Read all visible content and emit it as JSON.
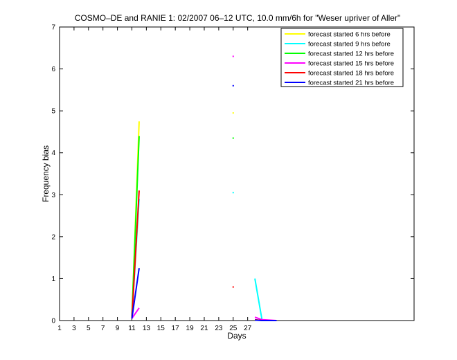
{
  "chart_data": {
    "type": "line",
    "title": "COSMO–DE and RANIE 1: 02/2007 06–12 UTC, 10.0 mm/6h for \"Weser upriver of Aller\"",
    "xlabel": "Days",
    "ylabel": "Frequency bias",
    "xlim": [
      1,
      50
    ],
    "ylim": [
      0,
      7
    ],
    "xticks": [
      1,
      3,
      5,
      7,
      9,
      11,
      13,
      15,
      17,
      19,
      21,
      23,
      25,
      27
    ],
    "xtick_labels": [
      "1",
      "3",
      "5",
      "7",
      "9",
      "11",
      "13",
      "15",
      "17",
      "19",
      "21",
      "23",
      "25",
      "27"
    ],
    "yticks": [
      0,
      1,
      2,
      3,
      4,
      5,
      6,
      7
    ],
    "ytick_labels": [
      "0",
      "1",
      "2",
      "3",
      "4",
      "5",
      "6",
      "7"
    ],
    "grid": false,
    "legend_position": "top-right",
    "series": [
      {
        "name": "forecast started 6 hrs before",
        "color": "#ffff00",
        "segments": [
          [
            [
              11,
              0.05
            ],
            [
              12,
              4.75
            ]
          ],
          [
            [
              25,
              4.95
            ]
          ]
        ]
      },
      {
        "name": "forecast started 9 hrs before",
        "color": "#00ffff",
        "segments": [
          [
            [
              11,
              0.1
            ],
            [
              12,
              2.9
            ]
          ],
          [
            [
              25,
              3.05
            ]
          ],
          [
            [
              28,
              1.0
            ],
            [
              29,
              0.0
            ],
            [
              31,
              0.0
            ]
          ]
        ]
      },
      {
        "name": "forecast started 12 hrs before",
        "color": "#00ff00",
        "segments": [
          [
            [
              11,
              0.1
            ],
            [
              12,
              4.4
            ]
          ],
          [
            [
              25,
              4.35
            ]
          ]
        ]
      },
      {
        "name": "forecast started 15 hrs before",
        "color": "#ff00ff",
        "segments": [
          [
            [
              11,
              0.05
            ],
            [
              12,
              0.3
            ]
          ],
          [
            [
              25,
              6.3
            ]
          ],
          [
            [
              28,
              0.08
            ],
            [
              29,
              0.02
            ],
            [
              31,
              0.0
            ]
          ]
        ]
      },
      {
        "name": "forecast started 18 hrs before",
        "color": "#ff0000",
        "segments": [
          [
            [
              11,
              0.05
            ],
            [
              12,
              3.1
            ]
          ],
          [
            [
              25,
              0.8
            ]
          ],
          [
            [
              28,
              0.02
            ],
            [
              29,
              0.0
            ],
            [
              31,
              0.0
            ]
          ]
        ]
      },
      {
        "name": "forecast started 21 hrs before",
        "color": "#0000ff",
        "segments": [
          [
            [
              11,
              0.05
            ],
            [
              12,
              1.25
            ]
          ],
          [
            [
              25,
              5.6
            ]
          ],
          [
            [
              28,
              0.01
            ],
            [
              29,
              0.0
            ],
            [
              31,
              0.0
            ]
          ]
        ]
      }
    ]
  }
}
